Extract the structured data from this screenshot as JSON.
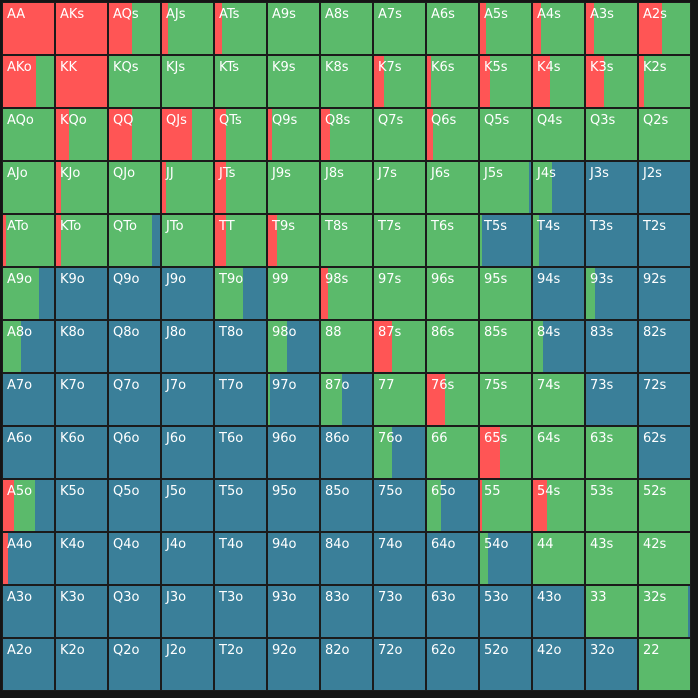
{
  "colors": {
    "raise": "#ff5555",
    "call": "#5bba6b",
    "fold": "#3a7f99"
  },
  "legend_order": [
    "raise",
    "call",
    "fold"
  ],
  "cells": [
    [
      {
        "label": "AA",
        "mix": [
          1,
          0,
          0
        ]
      },
      {
        "label": "AKs",
        "mix": [
          1,
          0,
          0
        ]
      },
      {
        "label": "AQs",
        "mix": [
          0.45,
          0.55,
          0
        ]
      },
      {
        "label": "AJs",
        "mix": [
          0.12,
          0.88,
          0
        ]
      },
      {
        "label": "ATs",
        "mix": [
          0.14,
          0.86,
          0
        ]
      },
      {
        "label": "A9s",
        "mix": [
          0,
          1,
          0
        ]
      },
      {
        "label": "A8s",
        "mix": [
          0,
          1,
          0
        ]
      },
      {
        "label": "A7s",
        "mix": [
          0,
          1,
          0
        ]
      },
      {
        "label": "A6s",
        "mix": [
          0,
          1,
          0
        ]
      },
      {
        "label": "A5s",
        "mix": [
          0.12,
          0.88,
          0
        ]
      },
      {
        "label": "A4s",
        "mix": [
          0.16,
          0.84,
          0
        ]
      },
      {
        "label": "A3s",
        "mix": [
          0.16,
          0.84,
          0
        ]
      },
      {
        "label": "A2s",
        "mix": [
          0.45,
          0.55,
          0
        ]
      }
    ],
    [
      {
        "label": "AKo",
        "mix": [
          0.65,
          0.35,
          0
        ]
      },
      {
        "label": "KK",
        "mix": [
          1,
          0,
          0
        ]
      },
      {
        "label": "KQs",
        "mix": [
          0,
          1,
          0
        ]
      },
      {
        "label": "KJs",
        "mix": [
          0,
          1,
          0
        ]
      },
      {
        "label": "KTs",
        "mix": [
          0,
          1,
          0
        ]
      },
      {
        "label": "K9s",
        "mix": [
          0,
          1,
          0
        ]
      },
      {
        "label": "K8s",
        "mix": [
          0,
          1,
          0
        ]
      },
      {
        "label": "K7s",
        "mix": [
          0.2,
          0.8,
          0
        ]
      },
      {
        "label": "K6s",
        "mix": [
          0.08,
          0.92,
          0
        ]
      },
      {
        "label": "K5s",
        "mix": [
          0.2,
          0.8,
          0
        ]
      },
      {
        "label": "K4s",
        "mix": [
          0.33,
          0.67,
          0
        ]
      },
      {
        "label": "K3s",
        "mix": [
          0.36,
          0.64,
          0
        ]
      },
      {
        "label": "K2s",
        "mix": [
          0.1,
          0.9,
          0
        ]
      }
    ],
    [
      {
        "label": "AQo",
        "mix": [
          0,
          1,
          0
        ]
      },
      {
        "label": "KQo",
        "mix": [
          0.26,
          0.74,
          0
        ]
      },
      {
        "label": "QQ",
        "mix": [
          0.45,
          0.55,
          0
        ]
      },
      {
        "label": "QJs",
        "mix": [
          0.58,
          0.42,
          0
        ]
      },
      {
        "label": "QTs",
        "mix": [
          0.22,
          0.78,
          0
        ]
      },
      {
        "label": "Q9s",
        "mix": [
          0.08,
          0.92,
          0
        ]
      },
      {
        "label": "Q8s",
        "mix": [
          0.18,
          0.82,
          0
        ]
      },
      {
        "label": "Q7s",
        "mix": [
          0,
          1,
          0
        ]
      },
      {
        "label": "Q6s",
        "mix": [
          0.12,
          0.88,
          0
        ]
      },
      {
        "label": "Q5s",
        "mix": [
          0,
          1,
          0
        ]
      },
      {
        "label": "Q4s",
        "mix": [
          0,
          1,
          0
        ]
      },
      {
        "label": "Q3s",
        "mix": [
          0,
          1,
          0
        ]
      },
      {
        "label": "Q2s",
        "mix": [
          0,
          1,
          0
        ]
      }
    ],
    [
      {
        "label": "AJo",
        "mix": [
          0,
          1,
          0
        ]
      },
      {
        "label": "KJo",
        "mix": [
          0.1,
          0.9,
          0
        ]
      },
      {
        "label": "QJo",
        "mix": [
          0,
          1,
          0
        ]
      },
      {
        "label": "JJ",
        "mix": [
          0.08,
          0.92,
          0
        ]
      },
      {
        "label": "JTs",
        "mix": [
          0.22,
          0.78,
          0
        ]
      },
      {
        "label": "J9s",
        "mix": [
          0,
          1,
          0
        ]
      },
      {
        "label": "J8s",
        "mix": [
          0,
          1,
          0
        ]
      },
      {
        "label": "J7s",
        "mix": [
          0,
          1,
          0
        ]
      },
      {
        "label": "J6s",
        "mix": [
          0,
          1,
          0
        ]
      },
      {
        "label": "J5s",
        "mix": [
          0,
          0.96,
          0.04
        ]
      },
      {
        "label": "J4s",
        "mix": [
          0,
          0.38,
          0.62
        ]
      },
      {
        "label": "J3s",
        "mix": [
          0,
          0,
          1
        ]
      },
      {
        "label": "J2s",
        "mix": [
          0,
          0,
          1
        ]
      }
    ],
    [
      {
        "label": "ATo",
        "mix": [
          0.06,
          0.94,
          0
        ]
      },
      {
        "label": "KTo",
        "mix": [
          0.1,
          0.9,
          0
        ]
      },
      {
        "label": "QTo",
        "mix": [
          0,
          0.85,
          0.15
        ]
      },
      {
        "label": "JTo",
        "mix": [
          0,
          1,
          0
        ]
      },
      {
        "label": "TT",
        "mix": [
          0.22,
          0.78,
          0
        ]
      },
      {
        "label": "T9s",
        "mix": [
          0.18,
          0.82,
          0
        ]
      },
      {
        "label": "T8s",
        "mix": [
          0,
          1,
          0
        ]
      },
      {
        "label": "T7s",
        "mix": [
          0,
          1,
          0
        ]
      },
      {
        "label": "T6s",
        "mix": [
          0,
          1,
          0
        ]
      },
      {
        "label": "T5s",
        "mix": [
          0,
          0.04,
          0.96
        ]
      },
      {
        "label": "T4s",
        "mix": [
          0,
          0.12,
          0.88
        ]
      },
      {
        "label": "T3s",
        "mix": [
          0,
          0,
          1
        ]
      },
      {
        "label": "T2s",
        "mix": [
          0,
          0,
          1
        ]
      }
    ],
    [
      {
        "label": "A9o",
        "mix": [
          0,
          0.7,
          0.3
        ]
      },
      {
        "label": "K9o",
        "mix": [
          0,
          0,
          1
        ]
      },
      {
        "label": "Q9o",
        "mix": [
          0,
          0,
          1
        ]
      },
      {
        "label": "J9o",
        "mix": [
          0,
          0,
          1
        ]
      },
      {
        "label": "T9o",
        "mix": [
          0,
          0.55,
          0.45
        ]
      },
      {
        "label": "99",
        "mix": [
          0,
          1,
          0
        ]
      },
      {
        "label": "98s",
        "mix": [
          0.14,
          0.86,
          0
        ]
      },
      {
        "label": "97s",
        "mix": [
          0,
          1,
          0
        ]
      },
      {
        "label": "96s",
        "mix": [
          0,
          1,
          0
        ]
      },
      {
        "label": "95s",
        "mix": [
          0,
          1,
          0
        ]
      },
      {
        "label": "94s",
        "mix": [
          0,
          0,
          1
        ]
      },
      {
        "label": "93s",
        "mix": [
          0,
          0.18,
          0.82
        ]
      },
      {
        "label": "92s",
        "mix": [
          0,
          0,
          1
        ]
      }
    ],
    [
      {
        "label": "A8o",
        "mix": [
          0,
          0.35,
          0.65
        ]
      },
      {
        "label": "K8o",
        "mix": [
          0,
          0,
          1
        ]
      },
      {
        "label": "Q8o",
        "mix": [
          0,
          0,
          1
        ]
      },
      {
        "label": "J8o",
        "mix": [
          0,
          0,
          1
        ]
      },
      {
        "label": "T8o",
        "mix": [
          0,
          0,
          1
        ]
      },
      {
        "label": "98o",
        "mix": [
          0,
          0.38,
          0.62
        ]
      },
      {
        "label": "88",
        "mix": [
          0,
          1,
          0
        ]
      },
      {
        "label": "87s",
        "mix": [
          0.36,
          0.64,
          0
        ]
      },
      {
        "label": "86s",
        "mix": [
          0,
          1,
          0
        ]
      },
      {
        "label": "85s",
        "mix": [
          0,
          1,
          0
        ]
      },
      {
        "label": "84s",
        "mix": [
          0,
          0.2,
          0.8
        ]
      },
      {
        "label": "83s",
        "mix": [
          0,
          0,
          1
        ]
      },
      {
        "label": "82s",
        "mix": [
          0,
          0,
          1
        ]
      }
    ],
    [
      {
        "label": "A7o",
        "mix": [
          0,
          0,
          1
        ]
      },
      {
        "label": "K7o",
        "mix": [
          0,
          0,
          1
        ]
      },
      {
        "label": "Q7o",
        "mix": [
          0,
          0,
          1
        ]
      },
      {
        "label": "J7o",
        "mix": [
          0,
          0,
          1
        ]
      },
      {
        "label": "T7o",
        "mix": [
          0,
          0,
          1
        ]
      },
      {
        "label": "97o",
        "mix": [
          0,
          0.04,
          0.96
        ]
      },
      {
        "label": "87o",
        "mix": [
          0,
          0.42,
          0.58
        ]
      },
      {
        "label": "77",
        "mix": [
          0,
          1,
          0
        ]
      },
      {
        "label": "76s",
        "mix": [
          0.36,
          0.64,
          0
        ]
      },
      {
        "label": "75s",
        "mix": [
          0,
          1,
          0
        ]
      },
      {
        "label": "74s",
        "mix": [
          0,
          1,
          0
        ]
      },
      {
        "label": "73s",
        "mix": [
          0,
          0,
          1
        ]
      },
      {
        "label": "72s",
        "mix": [
          0,
          0,
          1
        ]
      }
    ],
    [
      {
        "label": "A6o",
        "mix": [
          0,
          0,
          1
        ]
      },
      {
        "label": "K6o",
        "mix": [
          0,
          0,
          1
        ]
      },
      {
        "label": "Q6o",
        "mix": [
          0,
          0,
          1
        ]
      },
      {
        "label": "J6o",
        "mix": [
          0,
          0,
          1
        ]
      },
      {
        "label": "T6o",
        "mix": [
          0,
          0,
          1
        ]
      },
      {
        "label": "96o",
        "mix": [
          0,
          0,
          1
        ]
      },
      {
        "label": "86o",
        "mix": [
          0,
          0,
          1
        ]
      },
      {
        "label": "76o",
        "mix": [
          0,
          0.35,
          0.65
        ]
      },
      {
        "label": "66",
        "mix": [
          0,
          1,
          0
        ]
      },
      {
        "label": "65s",
        "mix": [
          0.4,
          0.6,
          0
        ]
      },
      {
        "label": "64s",
        "mix": [
          0,
          1,
          0
        ]
      },
      {
        "label": "63s",
        "mix": [
          0,
          1,
          0
        ]
      },
      {
        "label": "62s",
        "mix": [
          0,
          0,
          1
        ]
      }
    ],
    [
      {
        "label": "A5o",
        "mix": [
          0.22,
          0.4,
          0.38
        ]
      },
      {
        "label": "K5o",
        "mix": [
          0,
          0,
          1
        ]
      },
      {
        "label": "Q5o",
        "mix": [
          0,
          0,
          1
        ]
      },
      {
        "label": "J5o",
        "mix": [
          0,
          0,
          1
        ]
      },
      {
        "label": "T5o",
        "mix": [
          0,
          0,
          1
        ]
      },
      {
        "label": "95o",
        "mix": [
          0,
          0,
          1
        ]
      },
      {
        "label": "85o",
        "mix": [
          0,
          0,
          1
        ]
      },
      {
        "label": "75o",
        "mix": [
          0,
          0,
          1
        ]
      },
      {
        "label": "65o",
        "mix": [
          0,
          0.28,
          0.72
        ]
      },
      {
        "label": "55",
        "mix": [
          0.04,
          0.96,
          0
        ]
      },
      {
        "label": "54s",
        "mix": [
          0.28,
          0.72,
          0
        ]
      },
      {
        "label": "53s",
        "mix": [
          0,
          1,
          0
        ]
      },
      {
        "label": "52s",
        "mix": [
          0,
          1,
          0
        ]
      }
    ],
    [
      {
        "label": "A4o",
        "mix": [
          0.1,
          0,
          0.9
        ]
      },
      {
        "label": "K4o",
        "mix": [
          0,
          0,
          1
        ]
      },
      {
        "label": "Q4o",
        "mix": [
          0,
          0,
          1
        ]
      },
      {
        "label": "J4o",
        "mix": [
          0,
          0,
          1
        ]
      },
      {
        "label": "T4o",
        "mix": [
          0,
          0,
          1
        ]
      },
      {
        "label": "94o",
        "mix": [
          0,
          0,
          1
        ]
      },
      {
        "label": "84o",
        "mix": [
          0,
          0,
          1
        ]
      },
      {
        "label": "74o",
        "mix": [
          0,
          0,
          1
        ]
      },
      {
        "label": "64o",
        "mix": [
          0,
          0,
          1
        ]
      },
      {
        "label": "54o",
        "mix": [
          0,
          0.15,
          0.85
        ]
      },
      {
        "label": "44",
        "mix": [
          0,
          1,
          0
        ]
      },
      {
        "label": "43s",
        "mix": [
          0,
          1,
          0
        ]
      },
      {
        "label": "42s",
        "mix": [
          0,
          1,
          0
        ]
      }
    ],
    [
      {
        "label": "A3o",
        "mix": [
          0,
          0,
          1
        ]
      },
      {
        "label": "K3o",
        "mix": [
          0,
          0,
          1
        ]
      },
      {
        "label": "Q3o",
        "mix": [
          0,
          0,
          1
        ]
      },
      {
        "label": "J3o",
        "mix": [
          0,
          0,
          1
        ]
      },
      {
        "label": "T3o",
        "mix": [
          0,
          0,
          1
        ]
      },
      {
        "label": "93o",
        "mix": [
          0,
          0,
          1
        ]
      },
      {
        "label": "83o",
        "mix": [
          0,
          0,
          1
        ]
      },
      {
        "label": "73o",
        "mix": [
          0,
          0,
          1
        ]
      },
      {
        "label": "63o",
        "mix": [
          0,
          0,
          1
        ]
      },
      {
        "label": "53o",
        "mix": [
          0,
          0,
          1
        ]
      },
      {
        "label": "43o",
        "mix": [
          0,
          0,
          1
        ]
      },
      {
        "label": "33",
        "mix": [
          0,
          1,
          0
        ]
      },
      {
        "label": "32s",
        "mix": [
          0,
          0.96,
          0.04
        ]
      }
    ],
    [
      {
        "label": "A2o",
        "mix": [
          0,
          0,
          1
        ]
      },
      {
        "label": "K2o",
        "mix": [
          0,
          0,
          1
        ]
      },
      {
        "label": "Q2o",
        "mix": [
          0,
          0,
          1
        ]
      },
      {
        "label": "J2o",
        "mix": [
          0,
          0,
          1
        ]
      },
      {
        "label": "T2o",
        "mix": [
          0,
          0,
          1
        ]
      },
      {
        "label": "92o",
        "mix": [
          0,
          0,
          1
        ]
      },
      {
        "label": "82o",
        "mix": [
          0,
          0,
          1
        ]
      },
      {
        "label": "72o",
        "mix": [
          0,
          0,
          1
        ]
      },
      {
        "label": "62o",
        "mix": [
          0,
          0,
          1
        ]
      },
      {
        "label": "52o",
        "mix": [
          0,
          0,
          1
        ]
      },
      {
        "label": "42o",
        "mix": [
          0,
          0,
          1
        ]
      },
      {
        "label": "32o",
        "mix": [
          0,
          0,
          1
        ]
      },
      {
        "label": "22",
        "mix": [
          0,
          1,
          0
        ]
      }
    ]
  ]
}
